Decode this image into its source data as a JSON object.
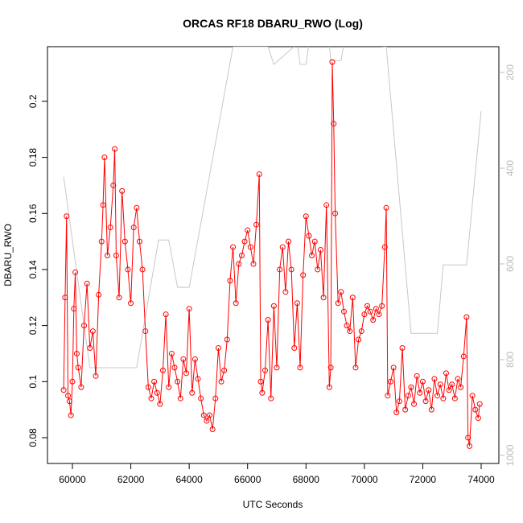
{
  "chart_data": {
    "type": "line",
    "title": "ORCAS RF18 DBARU_RWO (Log)",
    "x_label": "UTC Seconds",
    "y_label": "DBARU_RWO",
    "xlim": [
      59146,
      74606
    ],
    "xticks": [
      60000,
      62000,
      64000,
      66000,
      68000,
      70000,
      72000,
      74000
    ],
    "ylim": [
      0.0708,
      0.2195
    ],
    "yticks": [
      0.08,
      0.1,
      0.12,
      0.14,
      0.16,
      0.18,
      0.2
    ],
    "y2lim": [
      1017,
      146
    ],
    "y2ticks": [
      200,
      400,
      600,
      800,
      1000
    ],
    "series": [
      {
        "color": "#ff0000",
        "markers": true,
        "x": [
          59700,
          59750,
          59800,
          59850,
          59900,
          59950,
          60000,
          60050,
          60100,
          60150,
          60200,
          60300,
          60400,
          60500,
          60600,
          60700,
          60800,
          60900,
          61000,
          61050,
          61100,
          61200,
          61300,
          61400,
          61450,
          61500,
          61600,
          61700,
          61800,
          61900,
          62000,
          62100,
          62200,
          62300,
          62400,
          62500,
          62600,
          62700,
          62800,
          62900,
          63000,
          63100,
          63200,
          63300,
          63400,
          63500,
          63600,
          63700,
          63800,
          63900,
          64000,
          64100,
          64200,
          64300,
          64400,
          64500,
          64600,
          64700,
          64800,
          64900,
          65000,
          65100,
          65200,
          65300,
          65400,
          65500,
          65600,
          65700,
          65800,
          65900,
          66000,
          66100,
          66200,
          66300,
          66400,
          66450,
          66500,
          66600,
          66700,
          66800,
          66900,
          67000,
          67100,
          67200,
          67300,
          67400,
          67500,
          67600,
          67700,
          67800,
          67900,
          68000,
          68100,
          68200,
          68300,
          68400,
          68500,
          68600,
          68700,
          68800,
          68850,
          68900,
          68950,
          69000,
          69100,
          69200,
          69300,
          69400,
          69500,
          69600,
          69700,
          69800,
          69900,
          70000,
          70100,
          70200,
          70300,
          70400,
          70500,
          70600,
          70700,
          70750,
          70800,
          70900,
          71000,
          71100,
          71200,
          71300,
          71400,
          71500,
          71600,
          71700,
          71800,
          71900,
          72000,
          72100,
          72200,
          72300,
          72400,
          72500,
          72600,
          72700,
          72800,
          72900,
          73000,
          73100,
          73200,
          73300,
          73400,
          73500,
          73550,
          73600,
          73700,
          73800,
          73900,
          73950
        ],
        "values": [
          0.097,
          0.13,
          0.159,
          0.095,
          0.093,
          0.088,
          0.1,
          0.126,
          0.139,
          0.11,
          0.105,
          0.098,
          0.12,
          0.135,
          0.112,
          0.118,
          0.102,
          0.131,
          0.15,
          0.163,
          0.18,
          0.145,
          0.155,
          0.17,
          0.183,
          0.145,
          0.13,
          0.168,
          0.15,
          0.14,
          0.128,
          0.155,
          0.162,
          0.15,
          0.14,
          0.118,
          0.098,
          0.094,
          0.1,
          0.096,
          0.092,
          0.104,
          0.124,
          0.098,
          0.11,
          0.105,
          0.1,
          0.094,
          0.108,
          0.103,
          0.126,
          0.096,
          0.108,
          0.101,
          0.094,
          0.088,
          0.086,
          0.088,
          0.083,
          0.094,
          0.112,
          0.1,
          0.104,
          0.115,
          0.136,
          0.148,
          0.128,
          0.142,
          0.145,
          0.15,
          0.154,
          0.148,
          0.142,
          0.156,
          0.174,
          0.1,
          0.096,
          0.104,
          0.122,
          0.094,
          0.127,
          0.105,
          0.14,
          0.148,
          0.132,
          0.15,
          0.14,
          0.112,
          0.128,
          0.105,
          0.138,
          0.159,
          0.152,
          0.145,
          0.15,
          0.14,
          0.147,
          0.13,
          0.163,
          0.098,
          0.105,
          0.214,
          0.192,
          0.16,
          0.128,
          0.132,
          0.125,
          0.12,
          0.118,
          0.13,
          0.105,
          0.115,
          0.118,
          0.124,
          0.127,
          0.125,
          0.122,
          0.126,
          0.124,
          0.127,
          0.148,
          0.162,
          0.095,
          0.1,
          0.105,
          0.089,
          0.093,
          0.112,
          0.09,
          0.095,
          0.098,
          0.092,
          0.102,
          0.096,
          0.1,
          0.093,
          0.097,
          0.09,
          0.101,
          0.095,
          0.099,
          0.094,
          0.103,
          0.097,
          0.099,
          0.094,
          0.101,
          0.098,
          0.109,
          0.123,
          0.08,
          0.077,
          0.095,
          0.09,
          0.087,
          0.092
        ]
      },
      {
        "color": "#c8c8c8",
        "axis": "y2",
        "markers": false,
        "x": [
          59700,
          60600,
          62200,
          62950,
          63300,
          63600,
          64000,
          65500,
          66700,
          66900,
          67700,
          67800,
          68000,
          68100,
          68800,
          68850,
          69200,
          69300,
          70750,
          71600,
          72500,
          72700,
          73500,
          74000
        ],
        "values": [
          418,
          817,
          817,
          550,
          550,
          649,
          649,
          146,
          146,
          183,
          140,
          183,
          183,
          140,
          140,
          175,
          175,
          140,
          146,
          745,
          745,
          602,
          602,
          281
        ]
      }
    ]
  }
}
